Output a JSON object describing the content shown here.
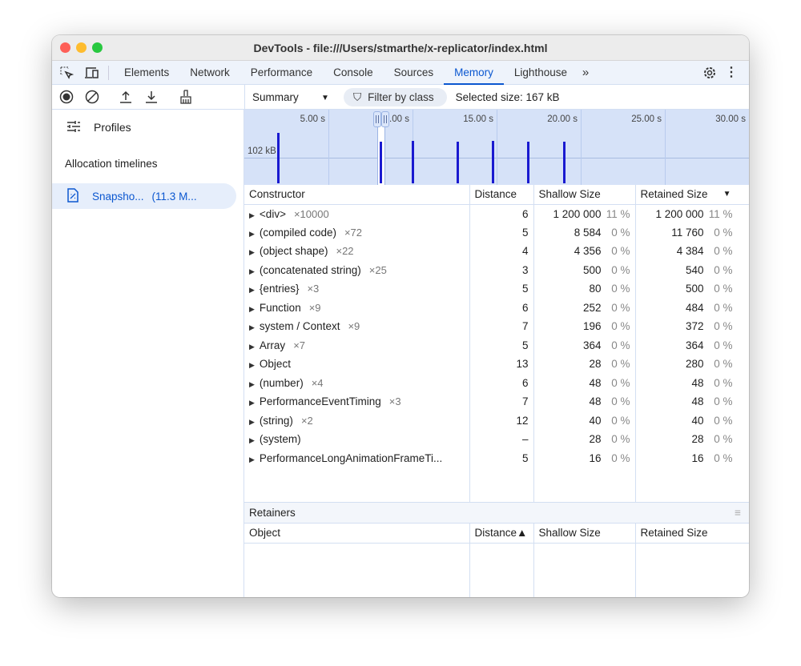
{
  "window": {
    "title": "DevTools - file:///Users/stmarthe/x-replicator/index.html"
  },
  "tabs": [
    {
      "label": "Elements"
    },
    {
      "label": "Network"
    },
    {
      "label": "Performance"
    },
    {
      "label": "Console"
    },
    {
      "label": "Sources"
    },
    {
      "label": "Memory",
      "active": true
    },
    {
      "label": "Lighthouse"
    }
  ],
  "toolbar": {
    "view": "Summary",
    "filter_placeholder": "Filter by class",
    "selected_size": "Selected size: 167 kB"
  },
  "sidebar": {
    "profiles": "Profiles",
    "section": "Allocation timelines",
    "snapshot_name": "Snapsho...",
    "snapshot_size": "(11.3 M..."
  },
  "timeline": {
    "ticks": [
      "5.00 s",
      "   .00 s",
      "15.00 s",
      "20.00 s",
      "25.00 s",
      "30.00 s"
    ],
    "y_label": "102 kB",
    "spikes": [
      {
        "t": 1.95,
        "kb": 200
      },
      {
        "t": 8.05,
        "kb": 166
      },
      {
        "t": 9.95,
        "kb": 168
      },
      {
        "t": 12.6,
        "kb": 166
      },
      {
        "t": 14.7,
        "kb": 168
      },
      {
        "t": 16.8,
        "kb": 166
      },
      {
        "t": 18.95,
        "kb": 166
      }
    ],
    "selection_s": [
      7.9,
      8.4
    ],
    "accent": "#1a1ad0"
  },
  "table": {
    "headers": [
      "Constructor",
      "Distance",
      "Shallow Size",
      "Retained Size"
    ],
    "rows": [
      {
        "name": "<div>",
        "count": "×10000",
        "distance": "6",
        "shallow": "1 200 000",
        "shallow_pct": "11 %",
        "retained": "1 200 000",
        "retained_pct": "11 %"
      },
      {
        "name": "(compiled code)",
        "count": "×72",
        "distance": "5",
        "shallow": "8 584",
        "shallow_pct": "0 %",
        "retained": "11 760",
        "retained_pct": "0 %"
      },
      {
        "name": "(object shape)",
        "count": "×22",
        "distance": "4",
        "shallow": "4 356",
        "shallow_pct": "0 %",
        "retained": "4 384",
        "retained_pct": "0 %"
      },
      {
        "name": "(concatenated string)",
        "count": "×25",
        "distance": "3",
        "shallow": "500",
        "shallow_pct": "0 %",
        "retained": "540",
        "retained_pct": "0 %"
      },
      {
        "name": "{entries}",
        "count": "×3",
        "distance": "5",
        "shallow": "80",
        "shallow_pct": "0 %",
        "retained": "500",
        "retained_pct": "0 %"
      },
      {
        "name": "Function",
        "count": "×9",
        "distance": "6",
        "shallow": "252",
        "shallow_pct": "0 %",
        "retained": "484",
        "retained_pct": "0 %"
      },
      {
        "name": "system / Context",
        "count": "×9",
        "distance": "7",
        "shallow": "196",
        "shallow_pct": "0 %",
        "retained": "372",
        "retained_pct": "0 %"
      },
      {
        "name": "Array",
        "count": "×7",
        "distance": "5",
        "shallow": "364",
        "shallow_pct": "0 %",
        "retained": "364",
        "retained_pct": "0 %"
      },
      {
        "name": "Object",
        "count": "",
        "distance": "13",
        "shallow": "28",
        "shallow_pct": "0 %",
        "retained": "280",
        "retained_pct": "0 %"
      },
      {
        "name": "(number)",
        "count": "×4",
        "distance": "6",
        "shallow": "48",
        "shallow_pct": "0 %",
        "retained": "48",
        "retained_pct": "0 %"
      },
      {
        "name": "PerformanceEventTiming",
        "count": "×3",
        "distance": "7",
        "shallow": "48",
        "shallow_pct": "0 %",
        "retained": "48",
        "retained_pct": "0 %"
      },
      {
        "name": "(string)",
        "count": "×2",
        "distance": "12",
        "shallow": "40",
        "shallow_pct": "0 %",
        "retained": "40",
        "retained_pct": "0 %"
      },
      {
        "name": "(system)",
        "count": "",
        "distance": "–",
        "shallow": "28",
        "shallow_pct": "0 %",
        "retained": "28",
        "retained_pct": "0 %"
      },
      {
        "name": "PerformanceLongAnimationFrameTi...",
        "count": "",
        "distance": "5",
        "shallow": "16",
        "shallow_pct": "0 %",
        "retained": "16",
        "retained_pct": "0 %"
      }
    ]
  },
  "retainers": {
    "title": "Retainers",
    "headers": [
      "Object",
      "Distance▲",
      "Shallow Size",
      "Retained Size"
    ]
  }
}
